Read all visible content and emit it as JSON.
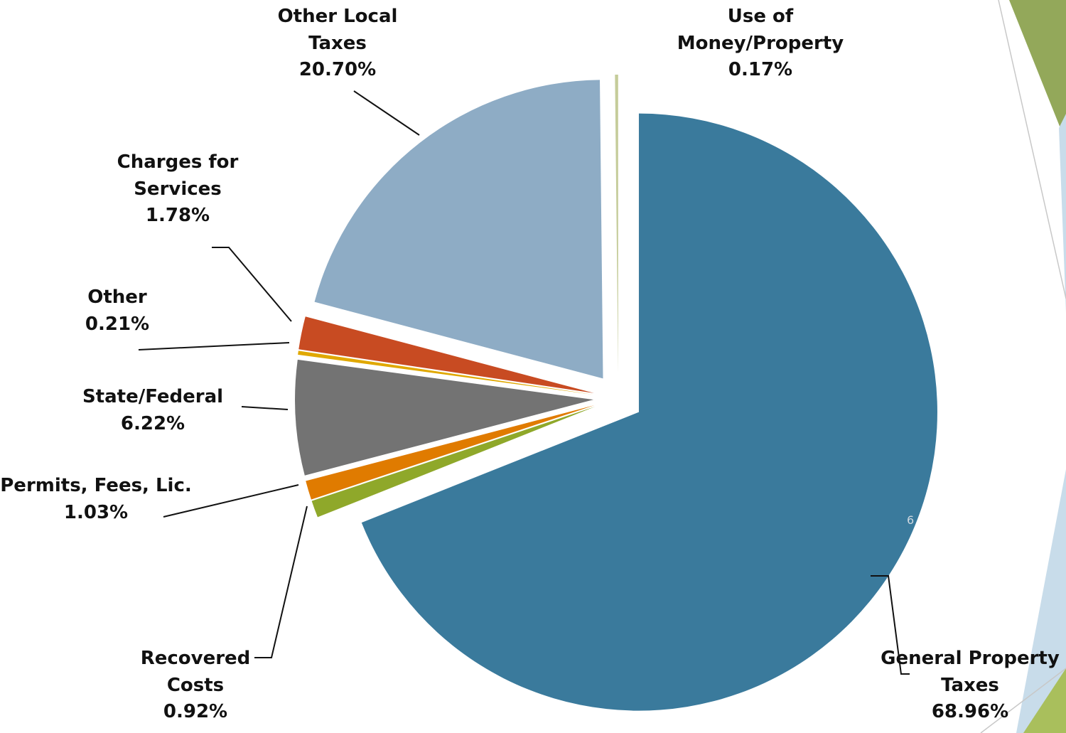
{
  "chart_data": {
    "type": "pie",
    "categories": [
      "General Property Taxes",
      "Recovered Costs",
      "Permits, Fees, Lic.",
      "State/Federal",
      "Other",
      "Charges for Services",
      "Other Local Taxes",
      "Use of Money/Property"
    ],
    "values": [
      68.96,
      0.92,
      1.03,
      6.22,
      0.21,
      1.78,
      20.7,
      0.17
    ],
    "value_labels": [
      "68.96%",
      "0.92%",
      "1.03%",
      "6.22%",
      "0.21%",
      "1.78%",
      "20.70%",
      "0.17%"
    ],
    "colors": [
      "#3a7a9c",
      "#8fa82a",
      "#e07b00",
      "#737373",
      "#e0a800",
      "#c84b22",
      "#8eacc5",
      "#c5cc9a"
    ],
    "page_number": "6"
  }
}
